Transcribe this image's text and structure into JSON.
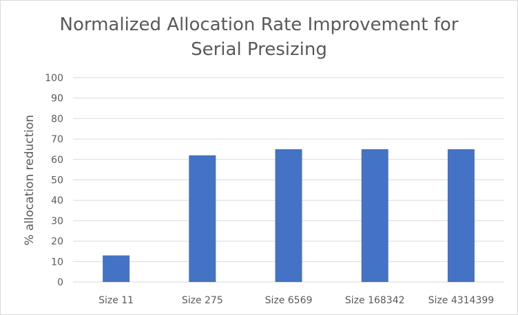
{
  "chart_data": {
    "type": "bar",
    "title_lines": [
      "Normalized Allocation Rate Improvement for",
      "Serial Presizing"
    ],
    "xlabel": "",
    "ylabel": "% allocation reduction",
    "categories": [
      "Size 11",
      "Size 275",
      "Size 6569",
      "Size 168342",
      "Size 4314399"
    ],
    "values": [
      13,
      62,
      65,
      65,
      65
    ],
    "ylim": [
      0,
      100
    ],
    "yticks": [
      0,
      10,
      20,
      30,
      40,
      50,
      60,
      70,
      80,
      90,
      100
    ],
    "grid": true,
    "legend": "none",
    "bar_color": "#4472c4",
    "grid_color": "#d9d9d9",
    "text_color": "#595959"
  }
}
